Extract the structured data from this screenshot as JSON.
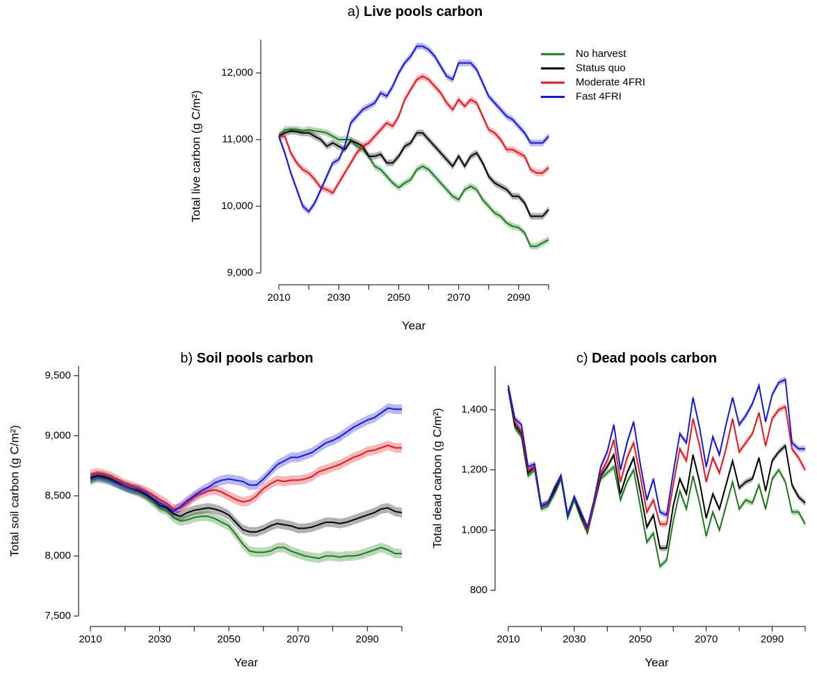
{
  "chart_data": [
    {
      "type": "line",
      "panel_label": "a)",
      "title": "Live pools carbon",
      "xlabel": "Year",
      "ylabel": "Total live carbon (g C/m²)",
      "legend": "top-right",
      "x": [
        2010,
        2012,
        2014,
        2016,
        2018,
        2020,
        2022,
        2024,
        2026,
        2028,
        2030,
        2032,
        2034,
        2036,
        2038,
        2040,
        2042,
        2044,
        2046,
        2048,
        2050,
        2052,
        2054,
        2056,
        2058,
        2060,
        2062,
        2064,
        2066,
        2068,
        2070,
        2072,
        2074,
        2076,
        2078,
        2080,
        2082,
        2084,
        2086,
        2088,
        2090,
        2092,
        2094,
        2096,
        2098,
        2100
      ],
      "xlim": [
        2010,
        2100
      ],
      "xticks": [
        2010,
        2030,
        2050,
        2070,
        2090
      ],
      "minor_xticks": [
        2020,
        2040,
        2060,
        2080,
        2100
      ],
      "ylim": [
        9000,
        12500
      ],
      "yticks": [
        {
          "value": 9000,
          "label": "9,000"
        },
        {
          "value": 10000,
          "label": "10,000"
        },
        {
          "value": 11000,
          "label": "11,000"
        },
        {
          "value": 12000,
          "label": "12,000"
        }
      ],
      "series": [
        {
          "name": "No harvest",
          "color": "#1b7a1b",
          "ci": 50,
          "values": [
            11050,
            11150,
            11150,
            11150,
            11130,
            11150,
            11130,
            11120,
            11100,
            11050,
            11000,
            11000,
            11000,
            10900,
            10850,
            10750,
            10600,
            10550,
            10450,
            10350,
            10280,
            10350,
            10400,
            10550,
            10600,
            10550,
            10450,
            10350,
            10250,
            10150,
            10100,
            10250,
            10300,
            10250,
            10100,
            10000,
            9900,
            9850,
            9750,
            9700,
            9680,
            9600,
            9400,
            9400,
            9450,
            9500
          ]
        },
        {
          "name": "Status quo",
          "color": "#000000",
          "ci": 50,
          "values": [
            11050,
            11100,
            11130,
            11120,
            11100,
            11100,
            11050,
            11000,
            10900,
            10950,
            10900,
            10850,
            10980,
            10950,
            10900,
            10750,
            10750,
            10780,
            10650,
            10650,
            10750,
            10900,
            10950,
            11100,
            11100,
            11000,
            10900,
            10800,
            10700,
            10600,
            10750,
            10600,
            10750,
            10800,
            10650,
            10450,
            10350,
            10300,
            10250,
            10150,
            10150,
            10050,
            9850,
            9850,
            9850,
            9950
          ]
        },
        {
          "name": "Moderate 4FRI",
          "color": "#e8141b",
          "ci": 50,
          "values": [
            11050,
            11050,
            10800,
            10650,
            10550,
            10500,
            10400,
            10280,
            10250,
            10200,
            10350,
            10500,
            10650,
            10800,
            10900,
            10950,
            11050,
            11150,
            11250,
            11200,
            11350,
            11600,
            11750,
            11900,
            11950,
            11900,
            11800,
            11700,
            11550,
            11450,
            11600,
            11500,
            11600,
            11550,
            11350,
            11150,
            11100,
            11000,
            10850,
            10850,
            10800,
            10750,
            10550,
            10500,
            10500,
            10580
          ]
        },
        {
          "name": "Fast 4FRI",
          "color": "#1515e0",
          "ci": 50,
          "values": [
            11050,
            10800,
            10500,
            10250,
            10000,
            9920,
            10050,
            10250,
            10450,
            10650,
            10700,
            10900,
            11250,
            11350,
            11450,
            11500,
            11550,
            11700,
            11650,
            11800,
            12000,
            12150,
            12250,
            12400,
            12400,
            12350,
            12250,
            12100,
            11950,
            11900,
            12150,
            12150,
            12150,
            12050,
            11850,
            11650,
            11550,
            11450,
            11350,
            11300,
            11200,
            11100,
            10950,
            10950,
            10950,
            11050
          ]
        }
      ]
    },
    {
      "type": "line",
      "panel_label": "b)",
      "title": "Soil pools carbon",
      "xlabel": "Year",
      "ylabel": "Total soil carbon (g C/m²)",
      "x": [
        2010,
        2012,
        2014,
        2016,
        2018,
        2020,
        2022,
        2024,
        2026,
        2028,
        2030,
        2032,
        2034,
        2036,
        2038,
        2040,
        2042,
        2044,
        2046,
        2048,
        2050,
        2052,
        2054,
        2056,
        2058,
        2060,
        2062,
        2064,
        2066,
        2068,
        2070,
        2072,
        2074,
        2076,
        2078,
        2080,
        2082,
        2084,
        2086,
        2088,
        2090,
        2092,
        2094,
        2096,
        2098,
        2100
      ],
      "xlim": [
        2010,
        2100
      ],
      "xticks": [
        2010,
        2030,
        2050,
        2070,
        2090
      ],
      "minor_xticks": [
        2020,
        2040,
        2060,
        2080,
        2100
      ],
      "ylim": [
        7500,
        9580
      ],
      "yticks": [
        {
          "value": 7500,
          "label": "7,500"
        },
        {
          "value": 8000,
          "label": "8,000"
        },
        {
          "value": 8500,
          "label": "8,500"
        },
        {
          "value": 9000,
          "label": "9,000"
        },
        {
          "value": 9500,
          "label": "9,500"
        }
      ],
      "series": [
        {
          "color": "#1b7a1b",
          "ci": 40,
          "values": [
            8630,
            8650,
            8640,
            8620,
            8600,
            8570,
            8550,
            8530,
            8500,
            8450,
            8400,
            8380,
            8320,
            8290,
            8300,
            8320,
            8330,
            8330,
            8310,
            8280,
            8250,
            8180,
            8100,
            8040,
            8030,
            8030,
            8040,
            8070,
            8070,
            8040,
            8020,
            8000,
            7990,
            7980,
            8000,
            8000,
            7990,
            8000,
            8000,
            8010,
            8030,
            8050,
            8070,
            8050,
            8020,
            8020
          ]
        },
        {
          "color": "#000000",
          "ci": 40,
          "values": [
            8650,
            8670,
            8660,
            8640,
            8610,
            8580,
            8560,
            8540,
            8510,
            8470,
            8420,
            8400,
            8350,
            8330,
            8360,
            8380,
            8390,
            8400,
            8390,
            8370,
            8340,
            8280,
            8220,
            8200,
            8200,
            8220,
            8250,
            8270,
            8260,
            8250,
            8230,
            8230,
            8240,
            8260,
            8280,
            8280,
            8270,
            8280,
            8300,
            8320,
            8340,
            8360,
            8390,
            8400,
            8370,
            8360
          ]
        },
        {
          "color": "#e8141b",
          "ci": 40,
          "values": [
            8680,
            8690,
            8680,
            8660,
            8630,
            8600,
            8580,
            8560,
            8540,
            8510,
            8470,
            8440,
            8390,
            8400,
            8440,
            8490,
            8520,
            8540,
            8550,
            8530,
            8500,
            8470,
            8450,
            8460,
            8500,
            8560,
            8600,
            8630,
            8620,
            8630,
            8630,
            8640,
            8660,
            8700,
            8720,
            8740,
            8760,
            8790,
            8820,
            8840,
            8870,
            8880,
            8900,
            8920,
            8900,
            8900
          ]
        },
        {
          "color": "#1515e0",
          "ci": 40,
          "values": [
            8640,
            8660,
            8650,
            8630,
            8600,
            8580,
            8560,
            8550,
            8520,
            8480,
            8440,
            8410,
            8370,
            8410,
            8460,
            8500,
            8540,
            8570,
            8610,
            8630,
            8640,
            8630,
            8620,
            8590,
            8590,
            8640,
            8700,
            8760,
            8790,
            8820,
            8820,
            8840,
            8860,
            8900,
            8940,
            8960,
            8990,
            9030,
            9070,
            9100,
            9130,
            9150,
            9190,
            9230,
            9220,
            9220
          ]
        }
      ]
    },
    {
      "type": "line",
      "panel_label": "c)",
      "title": "Dead pools carbon",
      "xlabel": "Year",
      "ylabel": "Total dead carbon (g C/m²)",
      "x": [
        2010,
        2012,
        2014,
        2016,
        2018,
        2020,
        2022,
        2024,
        2026,
        2028,
        2030,
        2032,
        2034,
        2036,
        2038,
        2040,
        2042,
        2044,
        2046,
        2048,
        2050,
        2052,
        2054,
        2056,
        2058,
        2060,
        2062,
        2064,
        2066,
        2068,
        2070,
        2072,
        2074,
        2076,
        2078,
        2080,
        2082,
        2084,
        2086,
        2088,
        2090,
        2092,
        2094,
        2096,
        2098,
        2100
      ],
      "xlim": [
        2010,
        2100
      ],
      "xticks": [
        2010,
        2030,
        2050,
        2070,
        2090
      ],
      "minor_xticks": [
        2020,
        2040,
        2060,
        2080,
        2100
      ],
      "ylim": [
        800,
        1545
      ],
      "yticks": [
        800,
        {
          "value": 1000,
          "label": "1,000"
        },
        {
          "value": 1200,
          "label": "1,200"
        },
        {
          "value": 1400,
          "label": "1,400"
        }
      ],
      "series": [
        {
          "color": "#1b7a1b",
          "ci": 10,
          "values": [
            1470,
            1340,
            1310,
            1180,
            1200,
            1070,
            1080,
            1120,
            1170,
            1040,
            1100,
            1040,
            990,
            1080,
            1170,
            1190,
            1210,
            1100,
            1160,
            1200,
            1080,
            960,
            990,
            880,
            900,
            1030,
            1130,
            1070,
            1180,
            1090,
            980,
            1060,
            1000,
            1080,
            1160,
            1070,
            1100,
            1090,
            1150,
            1070,
            1170,
            1200,
            1160,
            1060,
            1060,
            1020
          ]
        },
        {
          "color": "#000000",
          "ci": 10,
          "values": [
            1470,
            1350,
            1320,
            1190,
            1210,
            1080,
            1090,
            1130,
            1180,
            1050,
            1110,
            1050,
            1000,
            1090,
            1180,
            1210,
            1250,
            1120,
            1190,
            1240,
            1130,
            1010,
            1050,
            940,
            940,
            1080,
            1170,
            1120,
            1250,
            1160,
            1040,
            1120,
            1070,
            1150,
            1230,
            1140,
            1160,
            1170,
            1240,
            1130,
            1230,
            1260,
            1280,
            1150,
            1110,
            1090
          ]
        },
        {
          "color": "#e8141b",
          "ci": 10,
          "values": [
            1480,
            1360,
            1330,
            1200,
            1210,
            1080,
            1090,
            1140,
            1180,
            1050,
            1110,
            1060,
            1000,
            1090,
            1190,
            1230,
            1300,
            1160,
            1240,
            1290,
            1180,
            1060,
            1100,
            1020,
            1020,
            1150,
            1270,
            1230,
            1370,
            1280,
            1160,
            1240,
            1190,
            1270,
            1370,
            1260,
            1290,
            1320,
            1390,
            1280,
            1370,
            1400,
            1410,
            1270,
            1240,
            1200
          ]
        },
        {
          "color": "#1515e0",
          "ci": 10,
          "values": [
            1480,
            1370,
            1350,
            1210,
            1220,
            1080,
            1090,
            1140,
            1180,
            1050,
            1110,
            1060,
            1010,
            1100,
            1210,
            1260,
            1350,
            1200,
            1290,
            1360,
            1220,
            1100,
            1170,
            1060,
            1050,
            1190,
            1320,
            1290,
            1440,
            1340,
            1210,
            1310,
            1250,
            1350,
            1440,
            1350,
            1380,
            1420,
            1480,
            1360,
            1450,
            1490,
            1500,
            1290,
            1270,
            1270
          ]
        }
      ]
    }
  ]
}
